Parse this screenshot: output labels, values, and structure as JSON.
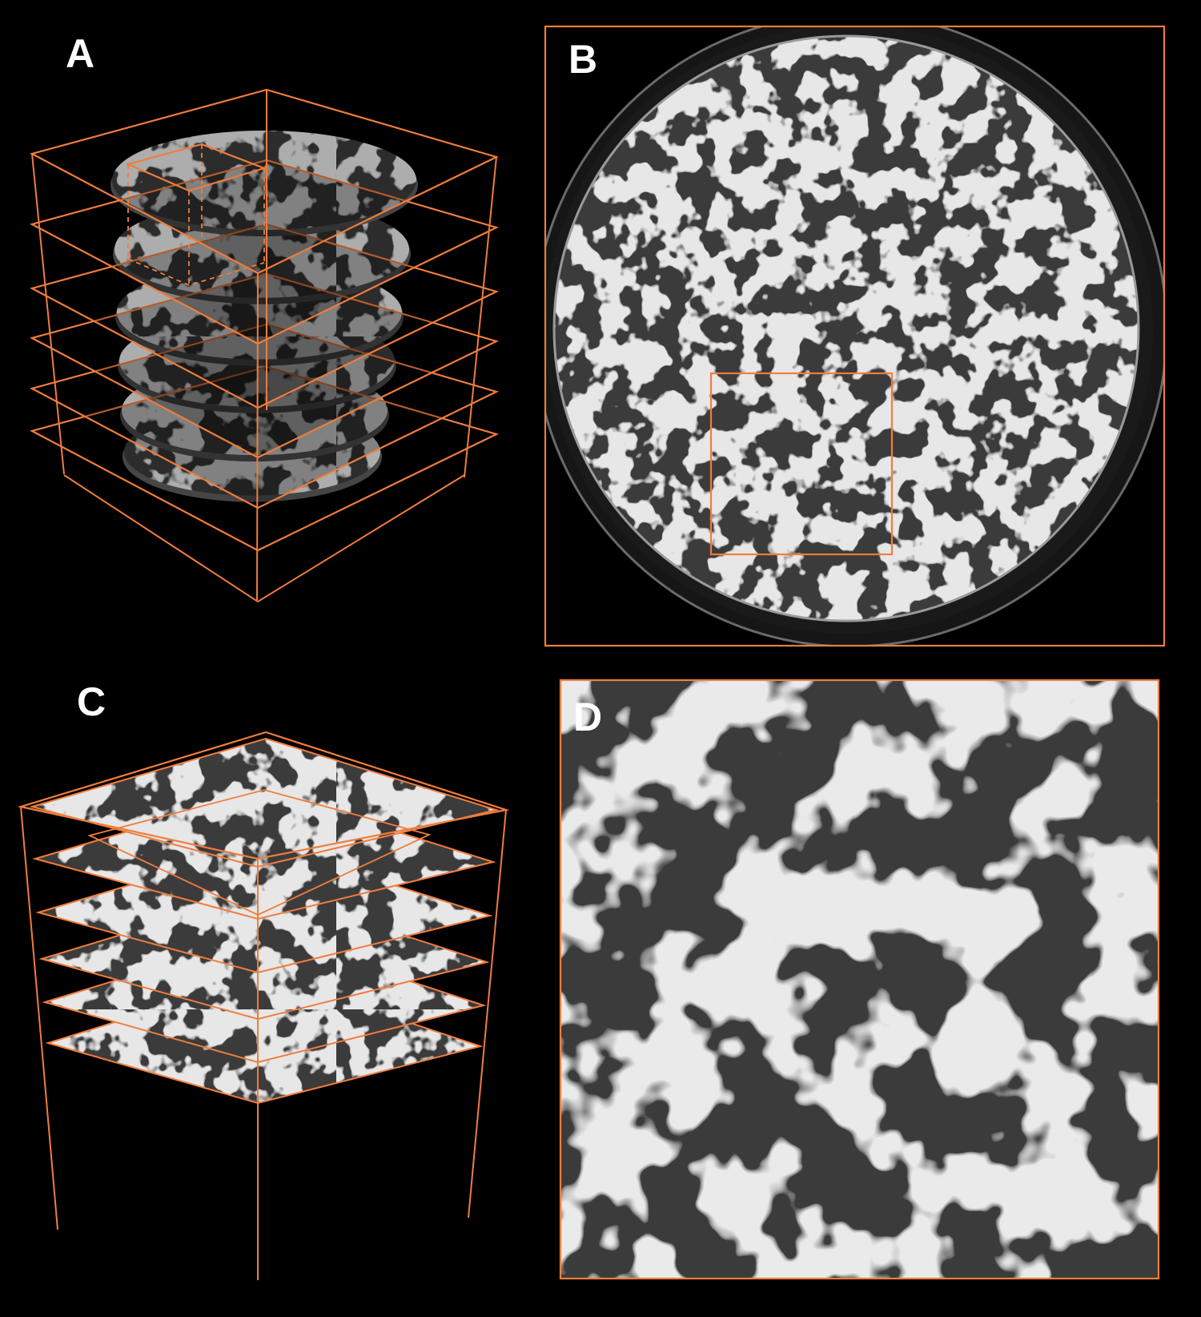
{
  "figure": {
    "panels": [
      {
        "id": "A",
        "label": "A"
      },
      {
        "id": "B",
        "label": "B"
      },
      {
        "id": "C",
        "label": "C"
      },
      {
        "id": "D",
        "label": "D"
      }
    ],
    "colors": {
      "background": "#000000",
      "outline": "#f07d3c",
      "tissue_dark": "#3a3a3a",
      "tissue_wall": "#cfcfcf"
    },
    "stacks": {
      "A_slice_count": 6,
      "C_slice_count": 6
    }
  }
}
